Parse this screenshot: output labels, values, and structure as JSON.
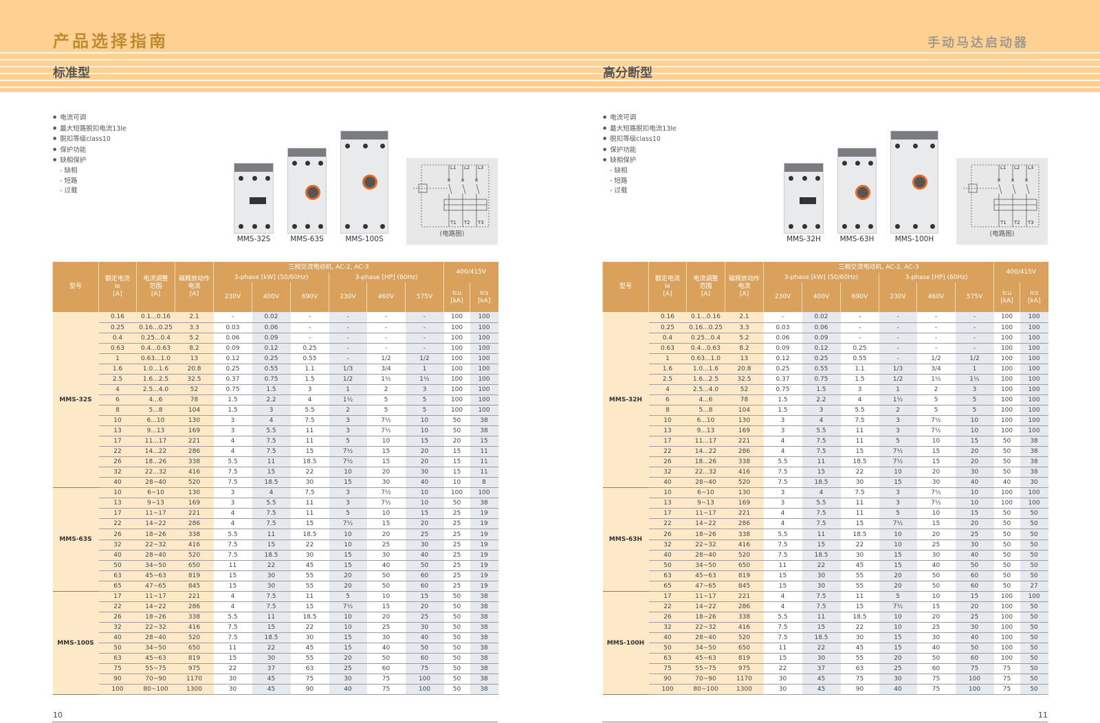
{
  "header": {
    "title": "产品选择指南",
    "right_title": "手动马达启动器"
  },
  "colors": {
    "band": "#fed193",
    "table_header": "#d9a15c",
    "cream": "#fde8c8",
    "grey": "#e6e9ee"
  },
  "table_header": {
    "model": "型号",
    "ie": "额定电流\nIe\n[A]",
    "range": "电流调整\n范围\n[A]",
    "trip": "磁释放动作\n电流\n[A]",
    "motor": "三相交流电动机, AC-2, AC-3",
    "kw": "3-phase [kW] (50/60Hz)",
    "hp": "3-phase [HP] (60Hz)",
    "voltage": "400/415V",
    "v": [
      "230V",
      "400V",
      "690V",
      "230V",
      "460V",
      "575V"
    ],
    "icu": "Icu\n[kA]",
    "ics": "Ics\n[kA]"
  },
  "left": {
    "subtitle": "标准型",
    "features": [
      "电流可调",
      "最大短路脱扣电流13Ie",
      "脱扣等级class10",
      "保护功能",
      "缺相保护"
    ],
    "sub_features": [
      "- 缺相",
      "- 短路",
      "- 过载"
    ],
    "products": [
      "MMS-32S",
      "MMS-63S",
      "MMS-100S"
    ],
    "circuit_caption": "(电路图)",
    "page_number": "10",
    "groups": [
      {
        "model": "MMS-32S",
        "rows": [
          [
            "0.16",
            "0.1...0.16",
            "2.1",
            "-",
            "0.02",
            "-",
            "-",
            "-",
            "-",
            "100",
            "100"
          ],
          [
            "0.25",
            "0.16...0.25",
            "3.3",
            "0.03",
            "0.06",
            "-",
            "-",
            "-",
            "-",
            "100",
            "100"
          ],
          [
            "0.4",
            "0.25...0.4",
            "5.2",
            "0.06",
            "0.09",
            "-",
            "-",
            "-",
            "-",
            "100",
            "100"
          ],
          [
            "0.63",
            "0.4...0.63",
            "8.2",
            "0.09",
            "0.12",
            "0.25",
            "-",
            "-",
            "-",
            "100",
            "100"
          ],
          [
            "1",
            "0.63...1.0",
            "13",
            "0.12",
            "0.25",
            "0.55",
            "-",
            "1/2",
            "1/2",
            "100",
            "100"
          ],
          [
            "1.6",
            "1.0...1.6",
            "20.8",
            "0.25",
            "0.55",
            "1.1",
            "1/3",
            "3/4",
            "1",
            "100",
            "100"
          ],
          [
            "2.5",
            "1.6...2.5",
            "32.5",
            "0.37",
            "0.75",
            "1.5",
            "1/2",
            "1½",
            "1½",
            "100",
            "100"
          ],
          [
            "4",
            "2.5...4.0",
            "52",
            "0.75",
            "1.5",
            "3",
            "1",
            "2",
            "3",
            "100",
            "100"
          ],
          [
            "6",
            "4...6",
            "78",
            "1.5",
            "2.2",
            "4",
            "1½",
            "5",
            "5",
            "100",
            "100"
          ],
          [
            "8",
            "5...8",
            "104",
            "1.5",
            "3",
            "5.5",
            "2",
            "5",
            "5",
            "100",
            "100"
          ],
          [
            "10",
            "6...10",
            "130",
            "3",
            "4",
            "7.5",
            "3",
            "7½",
            "10",
            "50",
            "38"
          ],
          [
            "13",
            "9...13",
            "169",
            "3",
            "5.5",
            "11",
            "3",
            "7½",
            "10",
            "50",
            "38"
          ],
          [
            "17",
            "11...17",
            "221",
            "4",
            "7.5",
            "11",
            "5",
            "10",
            "15",
            "20",
            "15"
          ],
          [
            "22",
            "14...22",
            "286",
            "4",
            "7.5",
            "15",
            "7½",
            "15",
            "20",
            "15",
            "11"
          ],
          [
            "26",
            "18...26",
            "338",
            "5.5",
            "11",
            "18.5",
            "7½",
            "15",
            "20",
            "15",
            "11"
          ],
          [
            "32",
            "22...32",
            "416",
            "7.5",
            "15",
            "22",
            "10",
            "20",
            "30",
            "15",
            "11"
          ],
          [
            "40",
            "28~40",
            "520",
            "7.5",
            "18.5",
            "30",
            "15",
            "30",
            "40",
            "10",
            "8"
          ]
        ]
      },
      {
        "model": "MMS-63S",
        "rows": [
          [
            "10",
            "6~10",
            "130",
            "3",
            "4",
            "7.5",
            "3",
            "7½",
            "10",
            "100",
            "100"
          ],
          [
            "13",
            "9~13",
            "169",
            "3",
            "5.5",
            "11",
            "3",
            "7½",
            "10",
            "50",
            "38"
          ],
          [
            "17",
            "11~17",
            "221",
            "4",
            "7.5",
            "11",
            "5",
            "10",
            "15",
            "25",
            "19"
          ],
          [
            "22",
            "14~22",
            "286",
            "4",
            "7.5",
            "15",
            "7½",
            "15",
            "20",
            "25",
            "19"
          ],
          [
            "26",
            "18~26",
            "338",
            "5.5",
            "11",
            "18.5",
            "10",
            "20",
            "25",
            "25",
            "19"
          ],
          [
            "32",
            "22~32",
            "416",
            "7.5",
            "15",
            "22",
            "10",
            "25",
            "30",
            "25",
            "19"
          ],
          [
            "40",
            "28~40",
            "520",
            "7.5",
            "18.5",
            "30",
            "15",
            "30",
            "40",
            "25",
            "19"
          ],
          [
            "50",
            "34~50",
            "650",
            "11",
            "22",
            "45",
            "15",
            "40",
            "50",
            "25",
            "19"
          ],
          [
            "63",
            "45~63",
            "819",
            "15",
            "30",
            "55",
            "20",
            "50",
            "60",
            "25",
            "19"
          ],
          [
            "65",
            "47~65",
            "845",
            "15",
            "30",
            "55",
            "20",
            "50",
            "60",
            "25",
            "19"
          ]
        ]
      },
      {
        "model": "MMS-100S",
        "rows": [
          [
            "17",
            "11~17",
            "221",
            "4",
            "7.5",
            "11",
            "5",
            "10",
            "15",
            "50",
            "38"
          ],
          [
            "22",
            "14~22",
            "286",
            "4",
            "7.5",
            "15",
            "7½",
            "15",
            "20",
            "50",
            "38"
          ],
          [
            "26",
            "18~26",
            "338",
            "5.5",
            "11",
            "18.5",
            "10",
            "20",
            "25",
            "50",
            "38"
          ],
          [
            "32",
            "22~32",
            "416",
            "7.5",
            "15",
            "22",
            "10",
            "25",
            "30",
            "50",
            "38"
          ],
          [
            "40",
            "28~40",
            "520",
            "7.5",
            "18.5",
            "30",
            "15",
            "30",
            "40",
            "50",
            "38"
          ],
          [
            "50",
            "34~50",
            "650",
            "11",
            "22",
            "45",
            "15",
            "40",
            "50",
            "50",
            "38"
          ],
          [
            "63",
            "45~63",
            "819",
            "15",
            "30",
            "55",
            "20",
            "50",
            "60",
            "50",
            "38"
          ],
          [
            "75",
            "55~75",
            "975",
            "22",
            "37",
            "63",
            "25",
            "60",
            "75",
            "50",
            "38"
          ],
          [
            "90",
            "70~90",
            "1170",
            "30",
            "45",
            "75",
            "30",
            "75",
            "100",
            "50",
            "38"
          ],
          [
            "100",
            "80~100",
            "1300",
            "30",
            "45",
            "90",
            "40",
            "75",
            "100",
            "50",
            "38"
          ]
        ]
      }
    ]
  },
  "right": {
    "subtitle": "高分断型",
    "features": [
      "电流可调",
      "最大短路脱扣电流13Ie",
      "脱扣等级class10",
      "保护功能",
      "缺相保护"
    ],
    "sub_features": [
      "- 缺相",
      "- 短路",
      "- 过载"
    ],
    "products": [
      "MMS-32H",
      "MMS-63H",
      "MMS-100H"
    ],
    "circuit_caption": "(电路图)",
    "page_number": "11",
    "groups": [
      {
        "model": "MMS-32H",
        "rows": [
          [
            "0.16",
            "0.1...0.16",
            "2.1",
            "-",
            "0.02",
            "-",
            "-",
            "-",
            "-",
            "100",
            "100"
          ],
          [
            "0.25",
            "0.16...0.25",
            "3.3",
            "0.03",
            "0.06",
            "-",
            "-",
            "-",
            "-",
            "100",
            "100"
          ],
          [
            "0.4",
            "0.25...0.4",
            "5.2",
            "0.06",
            "0.09",
            "-",
            "-",
            "-",
            "-",
            "100",
            "100"
          ],
          [
            "0.63",
            "0.4...0.63",
            "8.2",
            "0.09",
            "0.12",
            "0.25",
            "-",
            "-",
            "-",
            "100",
            "100"
          ],
          [
            "1",
            "0.63...1.0",
            "13",
            "0.12",
            "0.25",
            "0.55",
            "-",
            "1/2",
            "1/2",
            "100",
            "100"
          ],
          [
            "1.6",
            "1.0...1.6",
            "20.8",
            "0.25",
            "0.55",
            "1.1",
            "1/3",
            "3/4",
            "1",
            "100",
            "100"
          ],
          [
            "2.5",
            "1.6...2.5",
            "32.5",
            "0.37",
            "0.75",
            "1.5",
            "1/2",
            "1½",
            "1½",
            "100",
            "100"
          ],
          [
            "4",
            "2.5...4.0",
            "52",
            "0.75",
            "1.5",
            "3",
            "1",
            "2",
            "3",
            "100",
            "100"
          ],
          [
            "6",
            "4...6",
            "78",
            "1.5",
            "2.2",
            "4",
            "1½",
            "5",
            "5",
            "100",
            "100"
          ],
          [
            "8",
            "5...8",
            "104",
            "1.5",
            "3",
            "5.5",
            "2",
            "5",
            "5",
            "100",
            "100"
          ],
          [
            "10",
            "6...10",
            "130",
            "3",
            "4",
            "7.5",
            "3",
            "7½",
            "10",
            "100",
            "100"
          ],
          [
            "13",
            "9...13",
            "169",
            "3",
            "5.5",
            "11",
            "3",
            "7½",
            "10",
            "100",
            "100"
          ],
          [
            "17",
            "11...17",
            "221",
            "4",
            "7.5",
            "11",
            "5",
            "10",
            "15",
            "50",
            "38"
          ],
          [
            "22",
            "14...22",
            "286",
            "4",
            "7.5",
            "15",
            "7½",
            "15",
            "20",
            "50",
            "38"
          ],
          [
            "26",
            "18...26",
            "338",
            "5.5",
            "11",
            "18.5",
            "7½",
            "15",
            "20",
            "50",
            "38"
          ],
          [
            "32",
            "22...32",
            "416",
            "7.5",
            "15",
            "22",
            "10",
            "20",
            "30",
            "50",
            "38"
          ],
          [
            "40",
            "28~40",
            "520",
            "7.5",
            "18.5",
            "30",
            "15",
            "30",
            "40",
            "40",
            "30"
          ]
        ]
      },
      {
        "model": "MMS-63H",
        "rows": [
          [
            "10",
            "6~10",
            "130",
            "3",
            "4",
            "7.5",
            "3",
            "7½",
            "10",
            "100",
            "100"
          ],
          [
            "13",
            "9~13",
            "169",
            "3",
            "5.5",
            "11",
            "3",
            "7½",
            "10",
            "100",
            "100"
          ],
          [
            "17",
            "11~17",
            "221",
            "4",
            "7.5",
            "11",
            "5",
            "10",
            "15",
            "50",
            "50"
          ],
          [
            "22",
            "14~22",
            "286",
            "4",
            "7.5",
            "15",
            "7½",
            "15",
            "20",
            "50",
            "50"
          ],
          [
            "26",
            "18~26",
            "338",
            "5.5",
            "11",
            "18.5",
            "10",
            "20",
            "25",
            "50",
            "50"
          ],
          [
            "32",
            "22~32",
            "416",
            "7.5",
            "15",
            "22",
            "10",
            "25",
            "30",
            "50",
            "50"
          ],
          [
            "40",
            "28~40",
            "520",
            "7.5",
            "18.5",
            "30",
            "15",
            "30",
            "40",
            "50",
            "50"
          ],
          [
            "50",
            "34~50",
            "650",
            "11",
            "22",
            "45",
            "15",
            "40",
            "50",
            "50",
            "50"
          ],
          [
            "63",
            "45~63",
            "819",
            "15",
            "30",
            "55",
            "20",
            "50",
            "60",
            "50",
            "50"
          ],
          [
            "65",
            "47~65",
            "845",
            "15",
            "30",
            "55",
            "20",
            "50",
            "60",
            "50",
            "27"
          ]
        ]
      },
      {
        "model": "MMS-100H",
        "rows": [
          [
            "17",
            "11~17",
            "221",
            "4",
            "7.5",
            "11",
            "5",
            "10",
            "15",
            "100",
            "100"
          ],
          [
            "22",
            "14~22",
            "286",
            "4",
            "7.5",
            "15",
            "7½",
            "15",
            "20",
            "100",
            "50"
          ],
          [
            "26",
            "18~26",
            "338",
            "5.5",
            "11",
            "18.5",
            "10",
            "20",
            "25",
            "100",
            "50"
          ],
          [
            "32",
            "22~32",
            "416",
            "7.5",
            "15",
            "22",
            "10",
            "25",
            "30",
            "100",
            "50"
          ],
          [
            "40",
            "28~40",
            "520",
            "7.5",
            "18.5",
            "30",
            "15",
            "30",
            "40",
            "100",
            "50"
          ],
          [
            "50",
            "34~50",
            "650",
            "11",
            "22",
            "45",
            "15",
            "40",
            "50",
            "100",
            "50"
          ],
          [
            "63",
            "45~63",
            "819",
            "15",
            "30",
            "55",
            "20",
            "50",
            "60",
            "100",
            "50"
          ],
          [
            "75",
            "55~75",
            "975",
            "22",
            "37",
            "63",
            "25",
            "60",
            "75",
            "75",
            "50"
          ],
          [
            "90",
            "70~90",
            "1170",
            "30",
            "45",
            "75",
            "30",
            "75",
            "100",
            "75",
            "50"
          ],
          [
            "100",
            "80~100",
            "1300",
            "30",
            "45",
            "90",
            "40",
            "75",
            "100",
            "75",
            "50"
          ]
        ]
      }
    ]
  }
}
